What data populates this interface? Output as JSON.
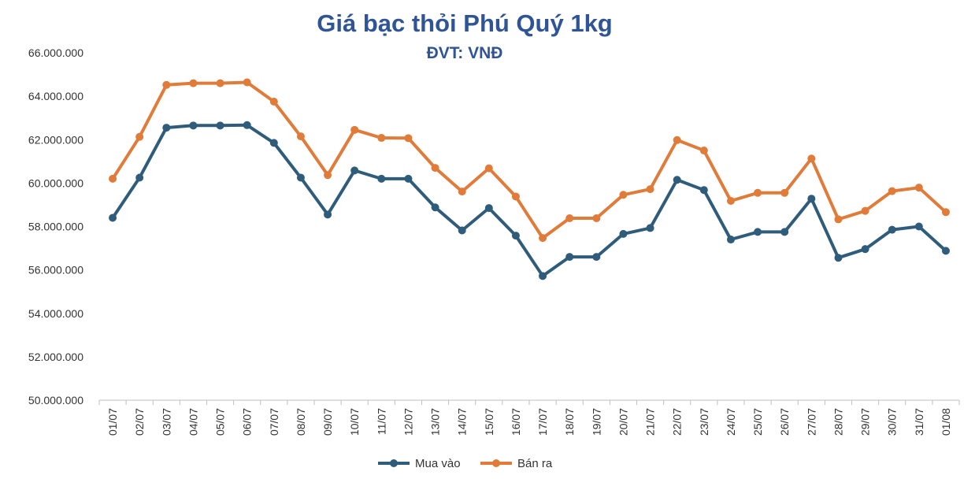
{
  "chart_data": {
    "type": "line",
    "title": "Giá bạc thỏi Phú Quý 1kg",
    "subtitle": "ĐVT: VNĐ",
    "xlabel": "",
    "ylabel": "",
    "ylim": [
      50000000,
      66000000
    ],
    "ytick_values": [
      50000000,
      52000000,
      54000000,
      56000000,
      58000000,
      60000000,
      62000000,
      64000000,
      66000000
    ],
    "ytick_labels": [
      "50.000.000",
      "52.000.000",
      "54.000.000",
      "56.000.000",
      "58.000.000",
      "60.000.000",
      "62.000.000",
      "64.000.000",
      "66.000.000"
    ],
    "grid": false,
    "legend_position": "bottom",
    "categories": [
      "01/07",
      "02/07",
      "03/07",
      "04/07",
      "05/07",
      "06/07",
      "07/07",
      "08/07",
      "09/07",
      "10/07",
      "11/07",
      "12/07",
      "13/07",
      "14/07",
      "15/07",
      "16/07",
      "17/07",
      "18/07",
      "19/07",
      "20/07",
      "21/07",
      "22/07",
      "23/07",
      "24/07",
      "25/07",
      "26/07",
      "27/07",
      "28/07",
      "29/07",
      "30/07",
      "31/07",
      "01/08"
    ],
    "series": [
      {
        "name": "Mua vào",
        "color": "#2E5C7A",
        "values": [
          58400000,
          60250000,
          62550000,
          62650000,
          62650000,
          62670000,
          61850000,
          60250000,
          58550000,
          60580000,
          60200000,
          60200000,
          58880000,
          57820000,
          58850000,
          57580000,
          55720000,
          56600000,
          56600000,
          57660000,
          57930000,
          60150000,
          59680000,
          57400000,
          57750000,
          57750000,
          59280000,
          56560000,
          56960000,
          57850000,
          58000000,
          56880000
        ]
      },
      {
        "name": "Bán ra",
        "color": "#E07B39",
        "values": [
          60200000,
          62130000,
          64520000,
          64600000,
          64600000,
          64640000,
          63750000,
          62150000,
          60370000,
          62450000,
          62080000,
          62070000,
          60700000,
          59610000,
          60680000,
          59380000,
          57470000,
          58380000,
          58380000,
          59460000,
          59720000,
          61980000,
          61500000,
          59180000,
          59550000,
          59550000,
          61130000,
          58330000,
          58720000,
          59630000,
          59790000,
          58660000
        ]
      }
    ]
  }
}
